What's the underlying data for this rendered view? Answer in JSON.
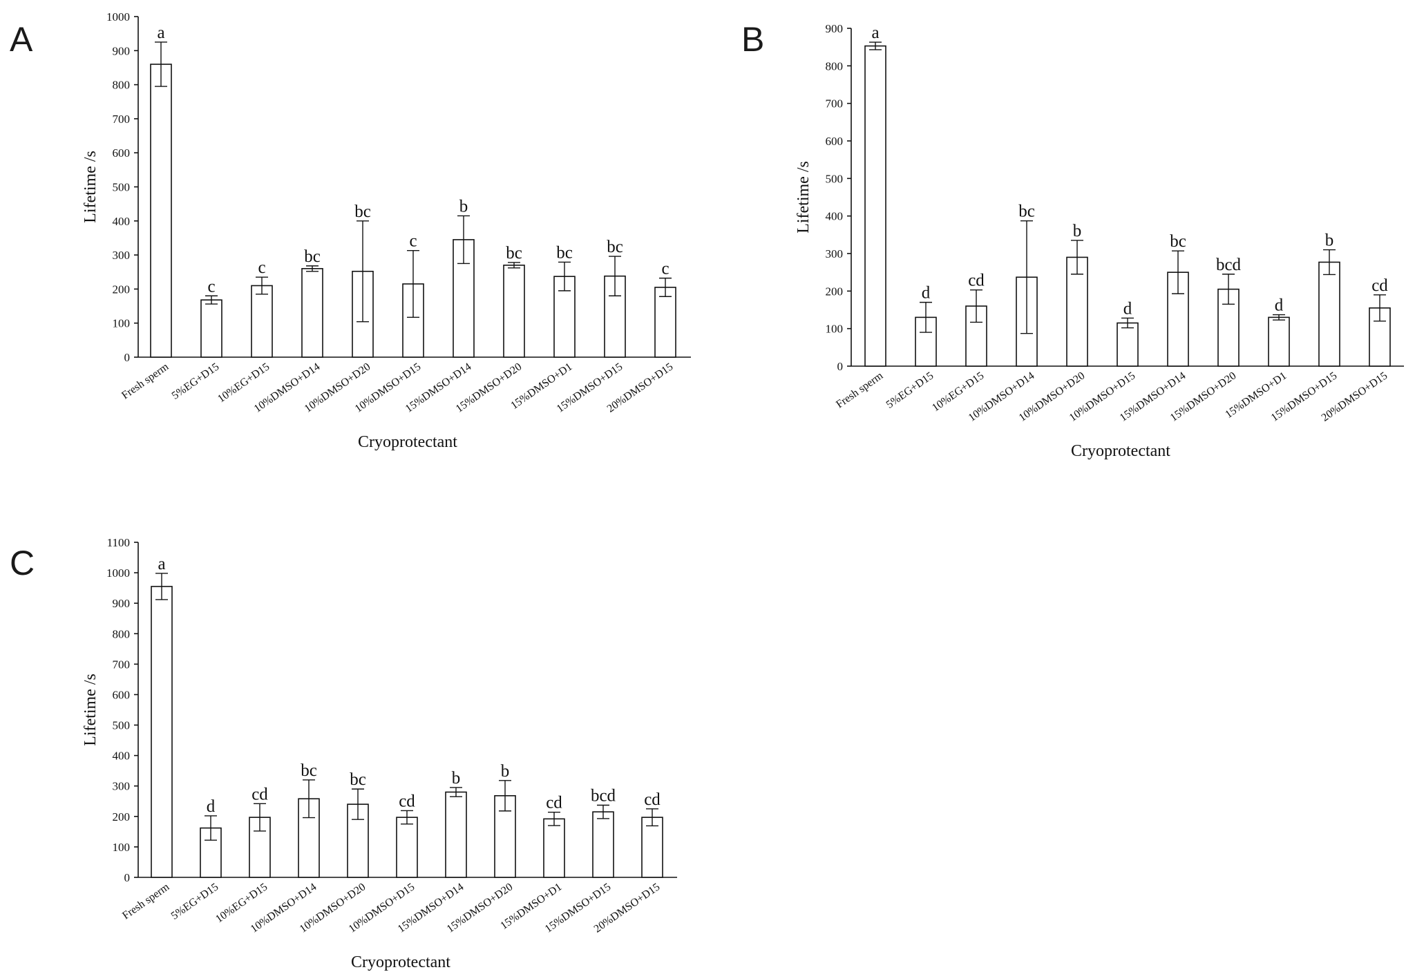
{
  "chart_data": [
    {
      "panel": "A",
      "type": "bar",
      "xlabel": "Cryoprotectant",
      "ylabel": "Lifetime /s",
      "ylim": [
        0,
        1000
      ],
      "yticks": [
        0,
        100,
        200,
        300,
        400,
        500,
        600,
        700,
        800,
        900,
        1000
      ],
      "categories": [
        "Fresh sperm",
        "5%EG+D15",
        "10%EG+D15",
        "10%DMSO+D14",
        "10%DMSO+D20",
        "10%DMSO+D15",
        "15%DMSO+D14",
        "15%DMSO+D20",
        "15%DMSO+D1",
        "15%DMSO+D15",
        "20%DMSO+D15"
      ],
      "values": [
        860,
        168,
        210,
        260,
        252,
        215,
        345,
        270,
        237,
        238,
        205
      ],
      "errors": [
        65,
        12,
        25,
        8,
        148,
        98,
        70,
        8,
        42,
        58,
        27
      ],
      "sig_labels": [
        "a",
        "c",
        "c",
        "bc",
        "bc",
        "c",
        "b",
        "bc",
        "bc",
        "bc",
        "c"
      ]
    },
    {
      "panel": "B",
      "type": "bar",
      "xlabel": "Cryoprotectant",
      "ylabel": "Lifetime /s",
      "ylim": [
        0,
        900
      ],
      "yticks": [
        0,
        100,
        200,
        300,
        400,
        500,
        600,
        700,
        800,
        900
      ],
      "categories": [
        "Fresh sperm",
        "5%EG+D15",
        "10%EG+D15",
        "10%DMSO+D14",
        "10%DMSO+D20",
        "10%DMSO+D15",
        "15%DMSO+D14",
        "15%DMSO+D20",
        "15%DMSO+D1",
        "15%DMSO+D15",
        "20%DMSO+D15"
      ],
      "values": [
        853,
        130,
        160,
        237,
        290,
        115,
        250,
        205,
        130,
        277,
        155
      ],
      "errors": [
        10,
        40,
        43,
        150,
        45,
        13,
        57,
        40,
        7,
        33,
        35
      ],
      "sig_labels": [
        "a",
        "d",
        "cd",
        "bc",
        "b",
        "d",
        "bc",
        "bcd",
        "d",
        "b",
        "cd"
      ]
    },
    {
      "panel": "C",
      "type": "bar",
      "xlabel": "Cryoprotectant",
      "ylabel": "Lifetime /s",
      "ylim": [
        0,
        1100
      ],
      "yticks": [
        0,
        100,
        200,
        300,
        400,
        500,
        600,
        700,
        800,
        900,
        1000,
        1100
      ],
      "categories": [
        "Fresh sperm",
        "5%EG+D15",
        "10%EG+D15",
        "10%DMSO+D14",
        "10%DMSO+D20",
        "10%DMSO+D15",
        "15%DMSO+D14",
        "15%DMSO+D20",
        "15%DMSO+D1",
        "15%DMSO+D15",
        "20%DMSO+D15"
      ],
      "values": [
        955,
        162,
        197,
        258,
        240,
        197,
        280,
        268,
        192,
        215,
        197
      ],
      "errors": [
        43,
        40,
        45,
        62,
        50,
        22,
        15,
        50,
        22,
        22,
        28
      ],
      "sig_labels": [
        "a",
        "d",
        "cd",
        "bc",
        "bc",
        "cd",
        "b",
        "b",
        "cd",
        "bcd",
        "cd"
      ]
    }
  ]
}
